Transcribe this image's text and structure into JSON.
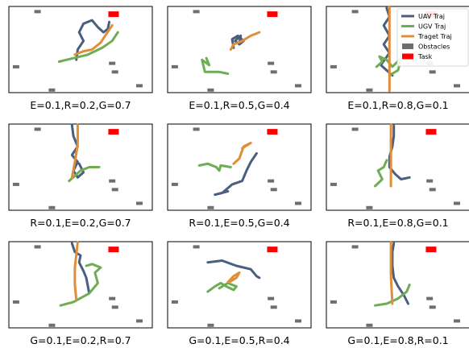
{
  "chart_data": {
    "type": "line",
    "legend": [
      {
        "name": "UAV Traj",
        "color": "#4a5f80",
        "kind": "line"
      },
      {
        "name": "UGV Traj",
        "color": "#6fad55",
        "kind": "line"
      },
      {
        "name": "Traget Traj",
        "color": "#e08e38",
        "kind": "line"
      },
      {
        "name": "Obstacles",
        "color": "#6e6e6e",
        "kind": "patch"
      },
      {
        "name": "Task",
        "color": "#ff0000",
        "kind": "patch"
      }
    ],
    "legend_location": "upper right of top-right panel",
    "xlim": [
      0,
      100
    ],
    "ylim": [
      0,
      100
    ],
    "grid": false,
    "obstacles": [
      [
        20,
        94
      ],
      [
        5,
        30
      ],
      [
        30,
        3
      ],
      [
        74,
        24
      ],
      [
        91,
        8
      ],
      [
        72,
        34
      ]
    ],
    "task": [
      73,
      91
    ],
    "panels": [
      {
        "caption": "E=0.1,R=0.2,G=0.7",
        "uav": [
          [
            47,
            38
          ],
          [
            48,
            50
          ],
          [
            52,
            60
          ],
          [
            49,
            70
          ],
          [
            52,
            80
          ],
          [
            58,
            84
          ],
          [
            62,
            76
          ],
          [
            66,
            70
          ],
          [
            69,
            74
          ],
          [
            70,
            82
          ]
        ],
        "ugv": [
          [
            35,
            36
          ],
          [
            45,
            40
          ],
          [
            55,
            44
          ],
          [
            65,
            52
          ],
          [
            72,
            60
          ],
          [
            76,
            70
          ]
        ],
        "target": [
          [
            46,
            44
          ],
          [
            52,
            48
          ],
          [
            58,
            50
          ],
          [
            64,
            58
          ],
          [
            68,
            68
          ],
          [
            72,
            78
          ]
        ]
      },
      {
        "caption": "E=0.1,R=0.5,G=0.4",
        "uav": [
          [
            46,
            52
          ],
          [
            45,
            62
          ],
          [
            49,
            66
          ],
          [
            53,
            60
          ],
          [
            50,
            56
          ],
          [
            47,
            60
          ],
          [
            51,
            66
          ],
          [
            50,
            58
          ]
        ],
        "ugv": [
          [
            27,
            40
          ],
          [
            29,
            32
          ],
          [
            24,
            38
          ],
          [
            26,
            24
          ],
          [
            36,
            24
          ],
          [
            42,
            22
          ]
        ],
        "target": [
          [
            44,
            50
          ],
          [
            46,
            56
          ],
          [
            52,
            60
          ],
          [
            58,
            66
          ],
          [
            64,
            70
          ]
        ]
      },
      {
        "caption": "E=0.1,R=0.8,G=0.1",
        "uav": [
          [
            42,
            98
          ],
          [
            44,
            88
          ],
          [
            40,
            78
          ],
          [
            44,
            66
          ],
          [
            40,
            56
          ],
          [
            44,
            46
          ],
          [
            38,
            32
          ],
          [
            46,
            20
          ]
        ],
        "ugv": [
          [
            35,
            30
          ],
          [
            39,
            36
          ],
          [
            37,
            42
          ],
          [
            42,
            38
          ],
          [
            46,
            30
          ],
          [
            52,
            40
          ],
          [
            50,
            26
          ],
          [
            44,
            20
          ]
        ],
        "target": [
          [
            44,
            99
          ],
          [
            44,
            50
          ],
          [
            44,
            2
          ]
        ]
      },
      {
        "caption": "R=0.1,E=0.2,G=0.7",
        "uav": [
          [
            44,
            99
          ],
          [
            45,
            86
          ],
          [
            48,
            74
          ],
          [
            44,
            64
          ],
          [
            48,
            56
          ],
          [
            45,
            46
          ],
          [
            48,
            38
          ],
          [
            52,
            44
          ],
          [
            49,
            54
          ]
        ],
        "ugv": [
          [
            42,
            34
          ],
          [
            46,
            40
          ],
          [
            50,
            46
          ],
          [
            56,
            50
          ],
          [
            63,
            50
          ]
        ],
        "target": [
          [
            48,
            99
          ],
          [
            48,
            76
          ],
          [
            46,
            56
          ],
          [
            44,
            38
          ]
        ]
      },
      {
        "caption": "R=0.1,E=0.5,G=0.4",
        "uav": [
          [
            62,
            66
          ],
          [
            58,
            56
          ],
          [
            55,
            46
          ],
          [
            52,
            34
          ],
          [
            45,
            30
          ],
          [
            38,
            20
          ],
          [
            33,
            18
          ],
          [
            42,
            22
          ]
        ],
        "ugv": [
          [
            22,
            52
          ],
          [
            28,
            54
          ],
          [
            34,
            50
          ],
          [
            36,
            46
          ],
          [
            37,
            52
          ],
          [
            44,
            50
          ]
        ],
        "target": [
          [
            46,
            54
          ],
          [
            50,
            60
          ],
          [
            53,
            74
          ],
          [
            58,
            78
          ],
          [
            52,
            72
          ]
        ]
      },
      {
        "caption": "R=0.1,E=0.8,G=0.1",
        "uav": [
          [
            47,
            98
          ],
          [
            47,
            86
          ],
          [
            46,
            74
          ],
          [
            44,
            62
          ],
          [
            44,
            50
          ],
          [
            48,
            42
          ],
          [
            52,
            36
          ],
          [
            58,
            38
          ]
        ],
        "ugv": [
          [
            34,
            28
          ],
          [
            39,
            36
          ],
          [
            36,
            46
          ],
          [
            40,
            50
          ],
          [
            42,
            58
          ]
        ],
        "target": [
          [
            45,
            99
          ],
          [
            45,
            64
          ],
          [
            45,
            28
          ]
        ]
      },
      {
        "caption": "G=0.1,E=0.2,R=0.7",
        "uav": [
          [
            44,
            98
          ],
          [
            46,
            88
          ],
          [
            50,
            84
          ],
          [
            49,
            76
          ],
          [
            52,
            66
          ],
          [
            54,
            58
          ],
          [
            56,
            40
          ]
        ],
        "ugv": [
          [
            36,
            26
          ],
          [
            45,
            30
          ],
          [
            56,
            40
          ],
          [
            62,
            52
          ],
          [
            60,
            64
          ],
          [
            64,
            70
          ],
          [
            58,
            74
          ],
          [
            54,
            72
          ]
        ],
        "target": [
          [
            48,
            99
          ],
          [
            46,
            70
          ],
          [
            46,
            50
          ],
          [
            47,
            33
          ]
        ]
      },
      {
        "caption": "G=0.1,E=0.5,R=0.4",
        "uav": [
          [
            28,
            76
          ],
          [
            38,
            78
          ],
          [
            48,
            72
          ],
          [
            58,
            68
          ],
          [
            62,
            60
          ],
          [
            64,
            58
          ]
        ],
        "ugv": [
          [
            28,
            42
          ],
          [
            33,
            48
          ],
          [
            37,
            52
          ],
          [
            41,
            48
          ],
          [
            46,
            44
          ],
          [
            48,
            48
          ],
          [
            42,
            52
          ],
          [
            36,
            46
          ]
        ],
        "target": [
          [
            42,
            53
          ],
          [
            46,
            60
          ],
          [
            50,
            64
          ],
          [
            48,
            58
          ],
          [
            44,
            54
          ]
        ]
      },
      {
        "caption": "G=0.1,E=0.8,R=0.1",
        "uav": [
          [
            47,
            98
          ],
          [
            46,
            88
          ],
          [
            46,
            72
          ],
          [
            47,
            58
          ],
          [
            50,
            48
          ],
          [
            54,
            38
          ],
          [
            57,
            28
          ]
        ],
        "ugv": [
          [
            34,
            26
          ],
          [
            42,
            28
          ],
          [
            50,
            34
          ],
          [
            56,
            42
          ],
          [
            58,
            50
          ]
        ],
        "target": [
          [
            45,
            99
          ],
          [
            45,
            60
          ],
          [
            46,
            28
          ]
        ]
      }
    ]
  }
}
